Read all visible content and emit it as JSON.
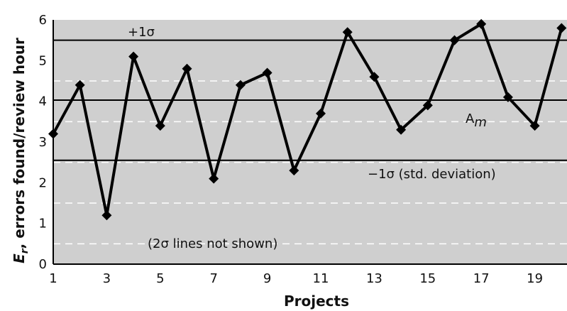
{
  "chart_data": {
    "type": "line",
    "xlabel": "Projects",
    "ylabel_main": "E",
    "ylabel_sub": "r",
    "ylabel_rest": ", errors found/review hour",
    "xlim": [
      1,
      20
    ],
    "ylim": [
      0,
      6
    ],
    "x_ticks": [
      1,
      3,
      5,
      7,
      9,
      11,
      13,
      15,
      17,
      19
    ],
    "y_ticks": [
      0,
      1,
      2,
      3,
      4,
      5,
      6
    ],
    "grid": "dashed horizontal at half units",
    "background_color": "#cfcfcf",
    "line_color": "#000000",
    "series": [
      {
        "x": [
          1,
          2,
          3,
          4,
          5,
          6,
          7,
          8,
          9,
          10,
          11,
          12,
          13,
          14,
          15,
          16,
          17,
          18,
          19,
          20
        ],
        "values": [
          3.2,
          4.4,
          1.2,
          5.1,
          3.4,
          4.8,
          2.1,
          4.4,
          4.7,
          2.3,
          3.7,
          5.7,
          4.6,
          3.3,
          3.9,
          5.5,
          5.9,
          4.1,
          3.4,
          5.8
        ]
      }
    ],
    "reference_lines": [
      {
        "value": 5.5,
        "label": "+1σ"
      },
      {
        "value": 4.03,
        "label": "A",
        "label_sub": "m"
      },
      {
        "value": 2.55,
        "label": "−1σ (std. deviation)"
      }
    ],
    "annotation": "(2σ lines not shown)"
  }
}
